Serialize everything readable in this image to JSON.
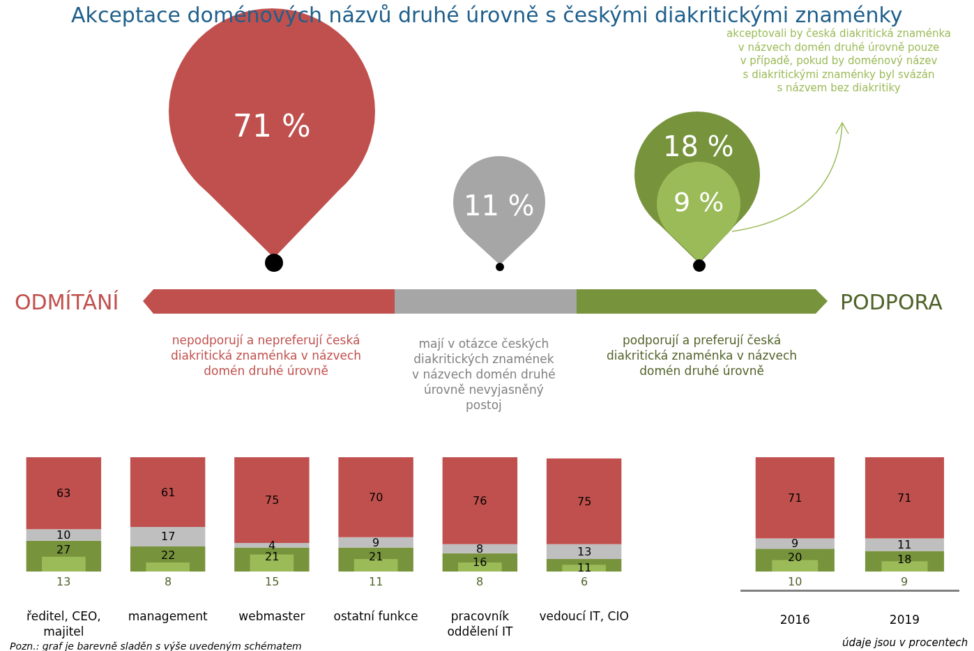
{
  "chart_data": [
    {
      "type": "other",
      "title": "Akceptace doménových názvů druhé úrovně s českými diakritickými znaménky",
      "annotations": [
        "71 %",
        "11 %",
        "18 %",
        "9 %",
        "ODMÍTÁNÍ",
        "PODPORA",
        "nepodporují a nepreferují česká\ndiakritická znaménka v názvech\ndomén druhé úrovně",
        "mají v otázce českých\ndiakritických znamének\nv názvech domén druhé\núrovně nevyjasněný\npostoj",
        "podporují a preferují česká\ndiakritická znaménka v názvech\ndomén druhé úrovně",
        "akceptovali by česká diakritická znaménka\nv názvech domén druhé úrovně pouze\nv případě, pokud by doménový název\ns diakritickými znaménky byl svázán\ns názvem bez diakritiky",
        "Pozn.: graf je barevně sladěn s výše uvedeným schématem",
        "údaje jsou v procentech"
      ]
    },
    {
      "type": "bar",
      "stacked": true,
      "data_labels": true,
      "categories": [
        "ředitel, CEO,\nmajitel",
        "management",
        "webmaster",
        "ostatní funkce",
        "pracovník\noddělení IT",
        "vedoucí IT, CIO"
      ],
      "series": [
        {
          "color": "#77933c",
          "values": [
            27,
            22,
            21,
            21,
            16,
            11
          ]
        },
        {
          "color": "#bfbfbf",
          "values": [
            10,
            17,
            4,
            9,
            8,
            13
          ]
        },
        {
          "color": "#c0504d",
          "values": [
            63,
            61,
            75,
            70,
            76,
            75
          ]
        }
      ]
    },
    {
      "type": "bar",
      "data_labels": true,
      "tick_labels": false,
      "categories": [
        null,
        null,
        null,
        null,
        null,
        null
      ],
      "series": [
        {
          "color": "#9bbb59",
          "values": [
            13,
            8,
            15,
            11,
            8,
            6
          ]
        }
      ]
    },
    {
      "type": "bar",
      "stacked": true,
      "data_labels": true,
      "categories": [
        "2016",
        "2019"
      ],
      "series": [
        {
          "color": "#77933c",
          "values": [
            20,
            18
          ]
        },
        {
          "color": "#bfbfbf",
          "values": [
            9,
            11
          ]
        },
        {
          "color": "#c0504d",
          "values": [
            71,
            71
          ]
        }
      ]
    },
    {
      "type": "bar",
      "data_labels": true,
      "tick_labels": false,
      "categories": [
        null,
        null
      ],
      "series": [
        {
          "color": "#9bbb59",
          "values": [
            10,
            9
          ]
        }
      ]
    }
  ]
}
